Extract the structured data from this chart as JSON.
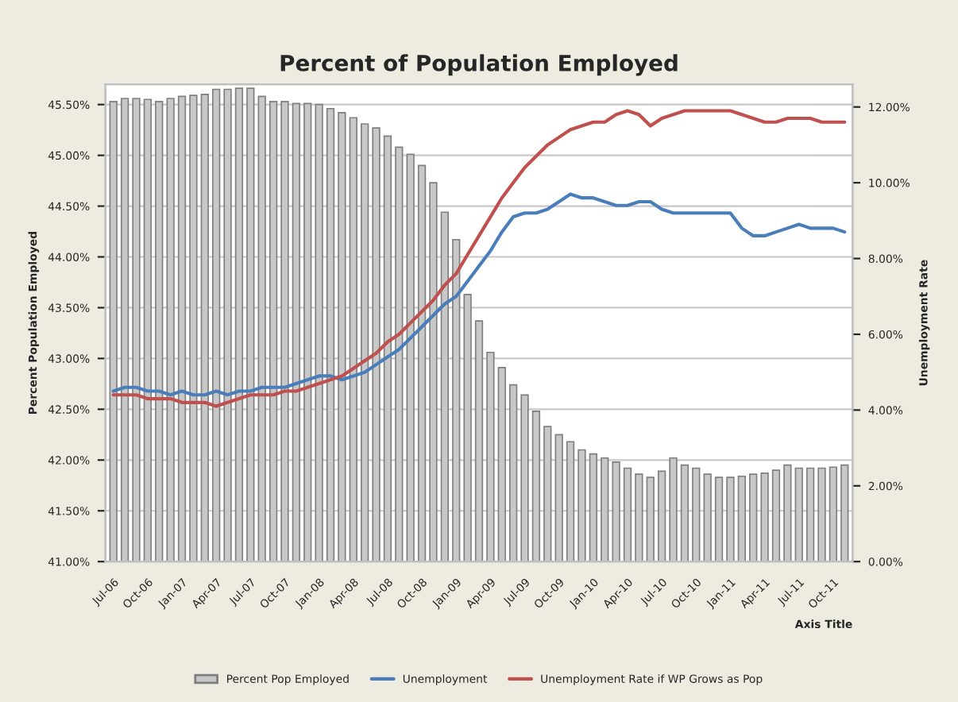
{
  "chart_data": {
    "type": "bar",
    "title": "Percent of Population Employed",
    "xlabel": "Axis Title",
    "ylabel": "Percent Population Employed",
    "y2label": "Unemployment Rate",
    "categories": [
      "Jul-06",
      null,
      null,
      "Oct-06",
      null,
      null,
      "Jan-07",
      null,
      null,
      "Apr-07",
      null,
      null,
      "Jul-07",
      null,
      null,
      "Oct-07",
      null,
      null,
      "Jan-08",
      null,
      null,
      "Apr-08",
      null,
      null,
      "Jul-08",
      null,
      null,
      "Oct-08",
      null,
      null,
      "Jan-09",
      null,
      null,
      "Apr-09",
      null,
      null,
      "Jul-09",
      null,
      null,
      "Oct-09",
      null,
      null,
      "Jan-10",
      null,
      null,
      "Apr-10",
      null,
      null,
      "Jul-10",
      null,
      null,
      "Oct-10",
      null,
      null,
      "Jan-11",
      null,
      null,
      "Apr-11",
      null,
      null,
      "Jul-11",
      null,
      null,
      "Oct-11",
      null
    ],
    "series": [
      {
        "name": "Percent Pop Employed",
        "color": "#c8c8c8",
        "values": [
          45.53,
          45.56,
          45.56,
          45.55,
          45.53,
          45.56,
          45.58,
          45.59,
          45.6,
          45.65,
          45.65,
          45.66,
          45.66,
          45.58,
          45.53,
          45.53,
          45.51,
          45.51,
          45.5,
          45.46,
          45.42,
          45.37,
          45.31,
          45.27,
          45.19,
          45.08,
          45.01,
          44.9,
          44.73,
          44.44,
          44.17,
          43.63,
          43.37,
          43.06,
          42.91,
          42.74,
          42.64,
          42.48,
          42.33,
          42.25,
          42.18,
          42.1,
          42.06,
          42.02,
          41.98,
          41.92,
          41.86,
          41.83,
          41.89,
          42.02,
          41.95,
          41.92,
          41.86,
          41.83,
          41.83,
          41.84,
          41.86,
          41.87,
          41.9,
          41.95,
          41.92,
          41.92,
          41.92,
          41.93,
          41.95
        ]
      },
      {
        "name": "Unemployment",
        "type": "line",
        "axis": "y2",
        "color": "#4a7ebb",
        "values": [
          4.5,
          4.6,
          4.6,
          4.5,
          4.5,
          4.4,
          4.5,
          4.4,
          4.4,
          4.5,
          4.4,
          4.5,
          4.5,
          4.6,
          4.6,
          4.6,
          4.7,
          4.8,
          4.9,
          4.9,
          4.8,
          4.9,
          5.0,
          5.2,
          5.4,
          5.6,
          5.9,
          6.2,
          6.5,
          6.8,
          7.0,
          7.4,
          7.8,
          8.2,
          8.7,
          9.1,
          9.2,
          9.2,
          9.3,
          9.5,
          9.7,
          9.6,
          9.6,
          9.5,
          9.4,
          9.4,
          9.5,
          9.5,
          9.3,
          9.2,
          9.2,
          9.2,
          9.2,
          9.2,
          9.2,
          8.8,
          8.6,
          8.6,
          8.7,
          8.8,
          8.9,
          8.8,
          8.8,
          8.8,
          8.7
        ]
      },
      {
        "name": "Unemployment Rate if WP Grows as Pop",
        "type": "line",
        "axis": "y2",
        "color": "#c0504d",
        "values": [
          4.4,
          4.4,
          4.4,
          4.3,
          4.3,
          4.3,
          4.2,
          4.2,
          4.2,
          4.1,
          4.2,
          4.3,
          4.4,
          4.4,
          4.4,
          4.5,
          4.5,
          4.6,
          4.7,
          4.8,
          4.9,
          5.1,
          5.3,
          5.5,
          5.8,
          6.0,
          6.3,
          6.6,
          6.9,
          7.3,
          7.6,
          8.1,
          8.6,
          9.1,
          9.6,
          10.0,
          10.4,
          10.7,
          11.0,
          11.2,
          11.4,
          11.5,
          11.6,
          11.6,
          11.8,
          11.9,
          11.8,
          11.5,
          11.7,
          11.8,
          11.9,
          11.9,
          11.9,
          11.9,
          11.9,
          11.8,
          11.7,
          11.6,
          11.6,
          11.7,
          11.7,
          11.7,
          11.6,
          11.6,
          11.6
        ]
      }
    ],
    "ylim": [
      41,
      45.7
    ],
    "yticks": [
      {
        "value": 41,
        "label": "41.00%"
      },
      {
        "value": 41.5,
        "label": "41.50%"
      },
      {
        "value": 42,
        "label": "42.00%"
      },
      {
        "value": 42.5,
        "label": "42.50%"
      },
      {
        "value": 43,
        "label": "43.00%"
      },
      {
        "value": 43.5,
        "label": "43.50%"
      },
      {
        "value": 44,
        "label": "44.00%"
      },
      {
        "value": 44.5,
        "label": "44.50%"
      },
      {
        "value": 45,
        "label": "45.00%"
      },
      {
        "value": 45.5,
        "label": "45.50%"
      }
    ],
    "y2lim": [
      0,
      12.6
    ],
    "y2ticks": [
      {
        "value": 0,
        "label": "0.00%"
      },
      {
        "value": 2,
        "label": "2.00%"
      },
      {
        "value": 4,
        "label": "4.00%"
      },
      {
        "value": 6,
        "label": "6.00%"
      },
      {
        "value": 8,
        "label": "8.00%"
      },
      {
        "value": 10,
        "label": "10.00%"
      },
      {
        "value": 12,
        "label": "12.00%"
      }
    ],
    "grid": "y",
    "legend": "bottom"
  }
}
